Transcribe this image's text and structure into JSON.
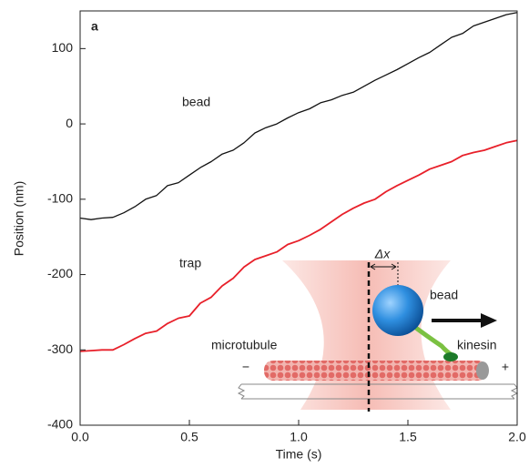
{
  "chart_data": {
    "type": "line",
    "panel_label": "a",
    "x_label": "Time (s)",
    "y_label": "Position (nm)",
    "x": [
      0,
      0.05,
      0.1,
      0.15,
      0.2,
      0.25,
      0.3,
      0.35,
      0.4,
      0.45,
      0.5,
      0.55,
      0.6,
      0.65,
      0.7,
      0.75,
      0.8,
      0.85,
      0.9,
      0.95,
      1.0,
      1.05,
      1.1,
      1.15,
      1.2,
      1.25,
      1.3,
      1.35,
      1.4,
      1.45,
      1.5,
      1.55,
      1.6,
      1.65,
      1.7,
      1.75,
      1.8,
      1.85,
      1.9,
      1.95,
      2.0
    ],
    "series": [
      {
        "name": "bead",
        "color": "#111111",
        "values": [
          -125,
          -127,
          -125,
          -124,
          -118,
          -110,
          -100,
          -95,
          -82,
          -78,
          -68,
          -58,
          -50,
          -40,
          -35,
          -25,
          -12,
          -5,
          0,
          8,
          15,
          20,
          28,
          32,
          38,
          42,
          50,
          58,
          65,
          72,
          80,
          88,
          95,
          105,
          115,
          120,
          130,
          135,
          140,
          145,
          148
        ]
      },
      {
        "name": "trap",
        "color": "#e8202a",
        "values": [
          -302,
          -301,
          -300,
          -300,
          -293,
          -285,
          -278,
          -275,
          -265,
          -258,
          -255,
          -238,
          -230,
          -215,
          -205,
          -190,
          -180,
          -175,
          -170,
          -160,
          -155,
          -148,
          -140,
          -130,
          -120,
          -112,
          -105,
          -100,
          -90,
          -82,
          -75,
          -68,
          -60,
          -55,
          -50,
          -42,
          -38,
          -35,
          -30,
          -25,
          -22
        ]
      }
    ],
    "xlim": [
      0,
      2
    ],
    "xticks": [
      {
        "value": 0,
        "label": "0.0"
      },
      {
        "value": 0.5,
        "label": "0.5"
      },
      {
        "value": 1,
        "label": "1.0"
      },
      {
        "value": 1.5,
        "label": "1.5"
      },
      {
        "value": 2,
        "label": "2.0"
      }
    ],
    "ylim": [
      -400,
      150
    ],
    "yticks": [
      -400,
      -300,
      -200,
      -100,
      0,
      100
    ],
    "grid": false,
    "inset": {
      "delta_x": "Δx",
      "bead": "bead",
      "microtubule": "microtubule",
      "kinesin": "kinesin",
      "minus_end": "−",
      "plus_end": "+"
    }
  }
}
